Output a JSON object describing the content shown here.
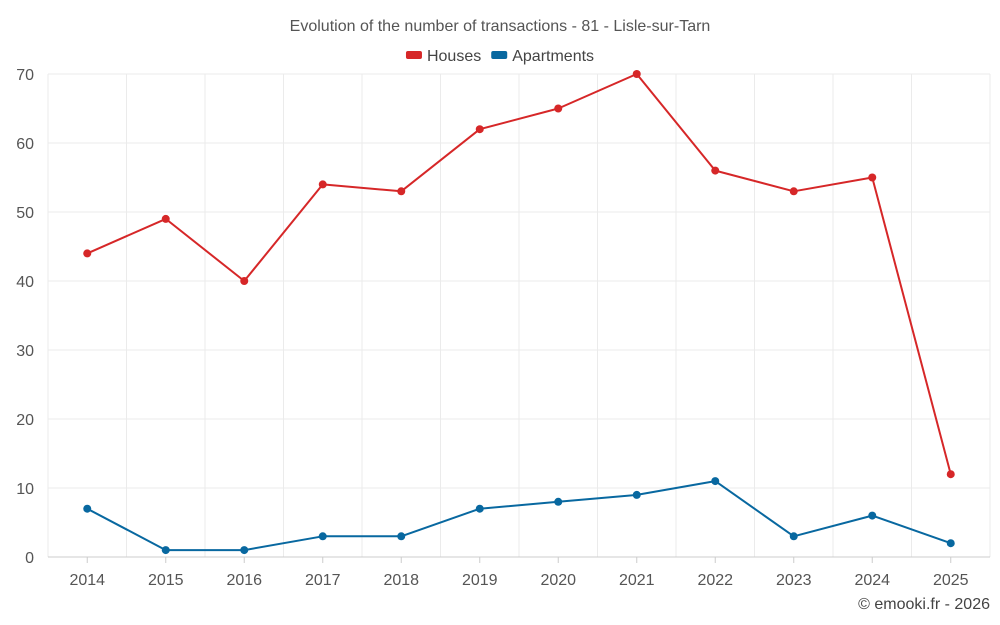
{
  "chart_data": {
    "type": "line",
    "title": "Evolution of the number of transactions - 81 - Lisle-sur-Tarn",
    "categories": [
      "2014",
      "2015",
      "2016",
      "2017",
      "2018",
      "2019",
      "2020",
      "2021",
      "2022",
      "2023",
      "2024",
      "2025"
    ],
    "series": [
      {
        "name": "Houses",
        "color": "#d62728",
        "values": [
          44,
          49,
          40,
          54,
          53,
          62,
          65,
          70,
          56,
          53,
          55,
          12
        ]
      },
      {
        "name": "Apartments",
        "color": "#0868a0",
        "values": [
          7,
          1,
          1,
          3,
          3,
          7,
          8,
          9,
          11,
          3,
          6,
          2
        ]
      }
    ],
    "ylim": [
      0,
      70
    ],
    "yticks": [
      0,
      10,
      20,
      30,
      40,
      50,
      60,
      70
    ],
    "xlabel": "",
    "ylabel": "",
    "grid": true,
    "legend_position": "top-center"
  },
  "credit": "© emooki.fr - 2026"
}
